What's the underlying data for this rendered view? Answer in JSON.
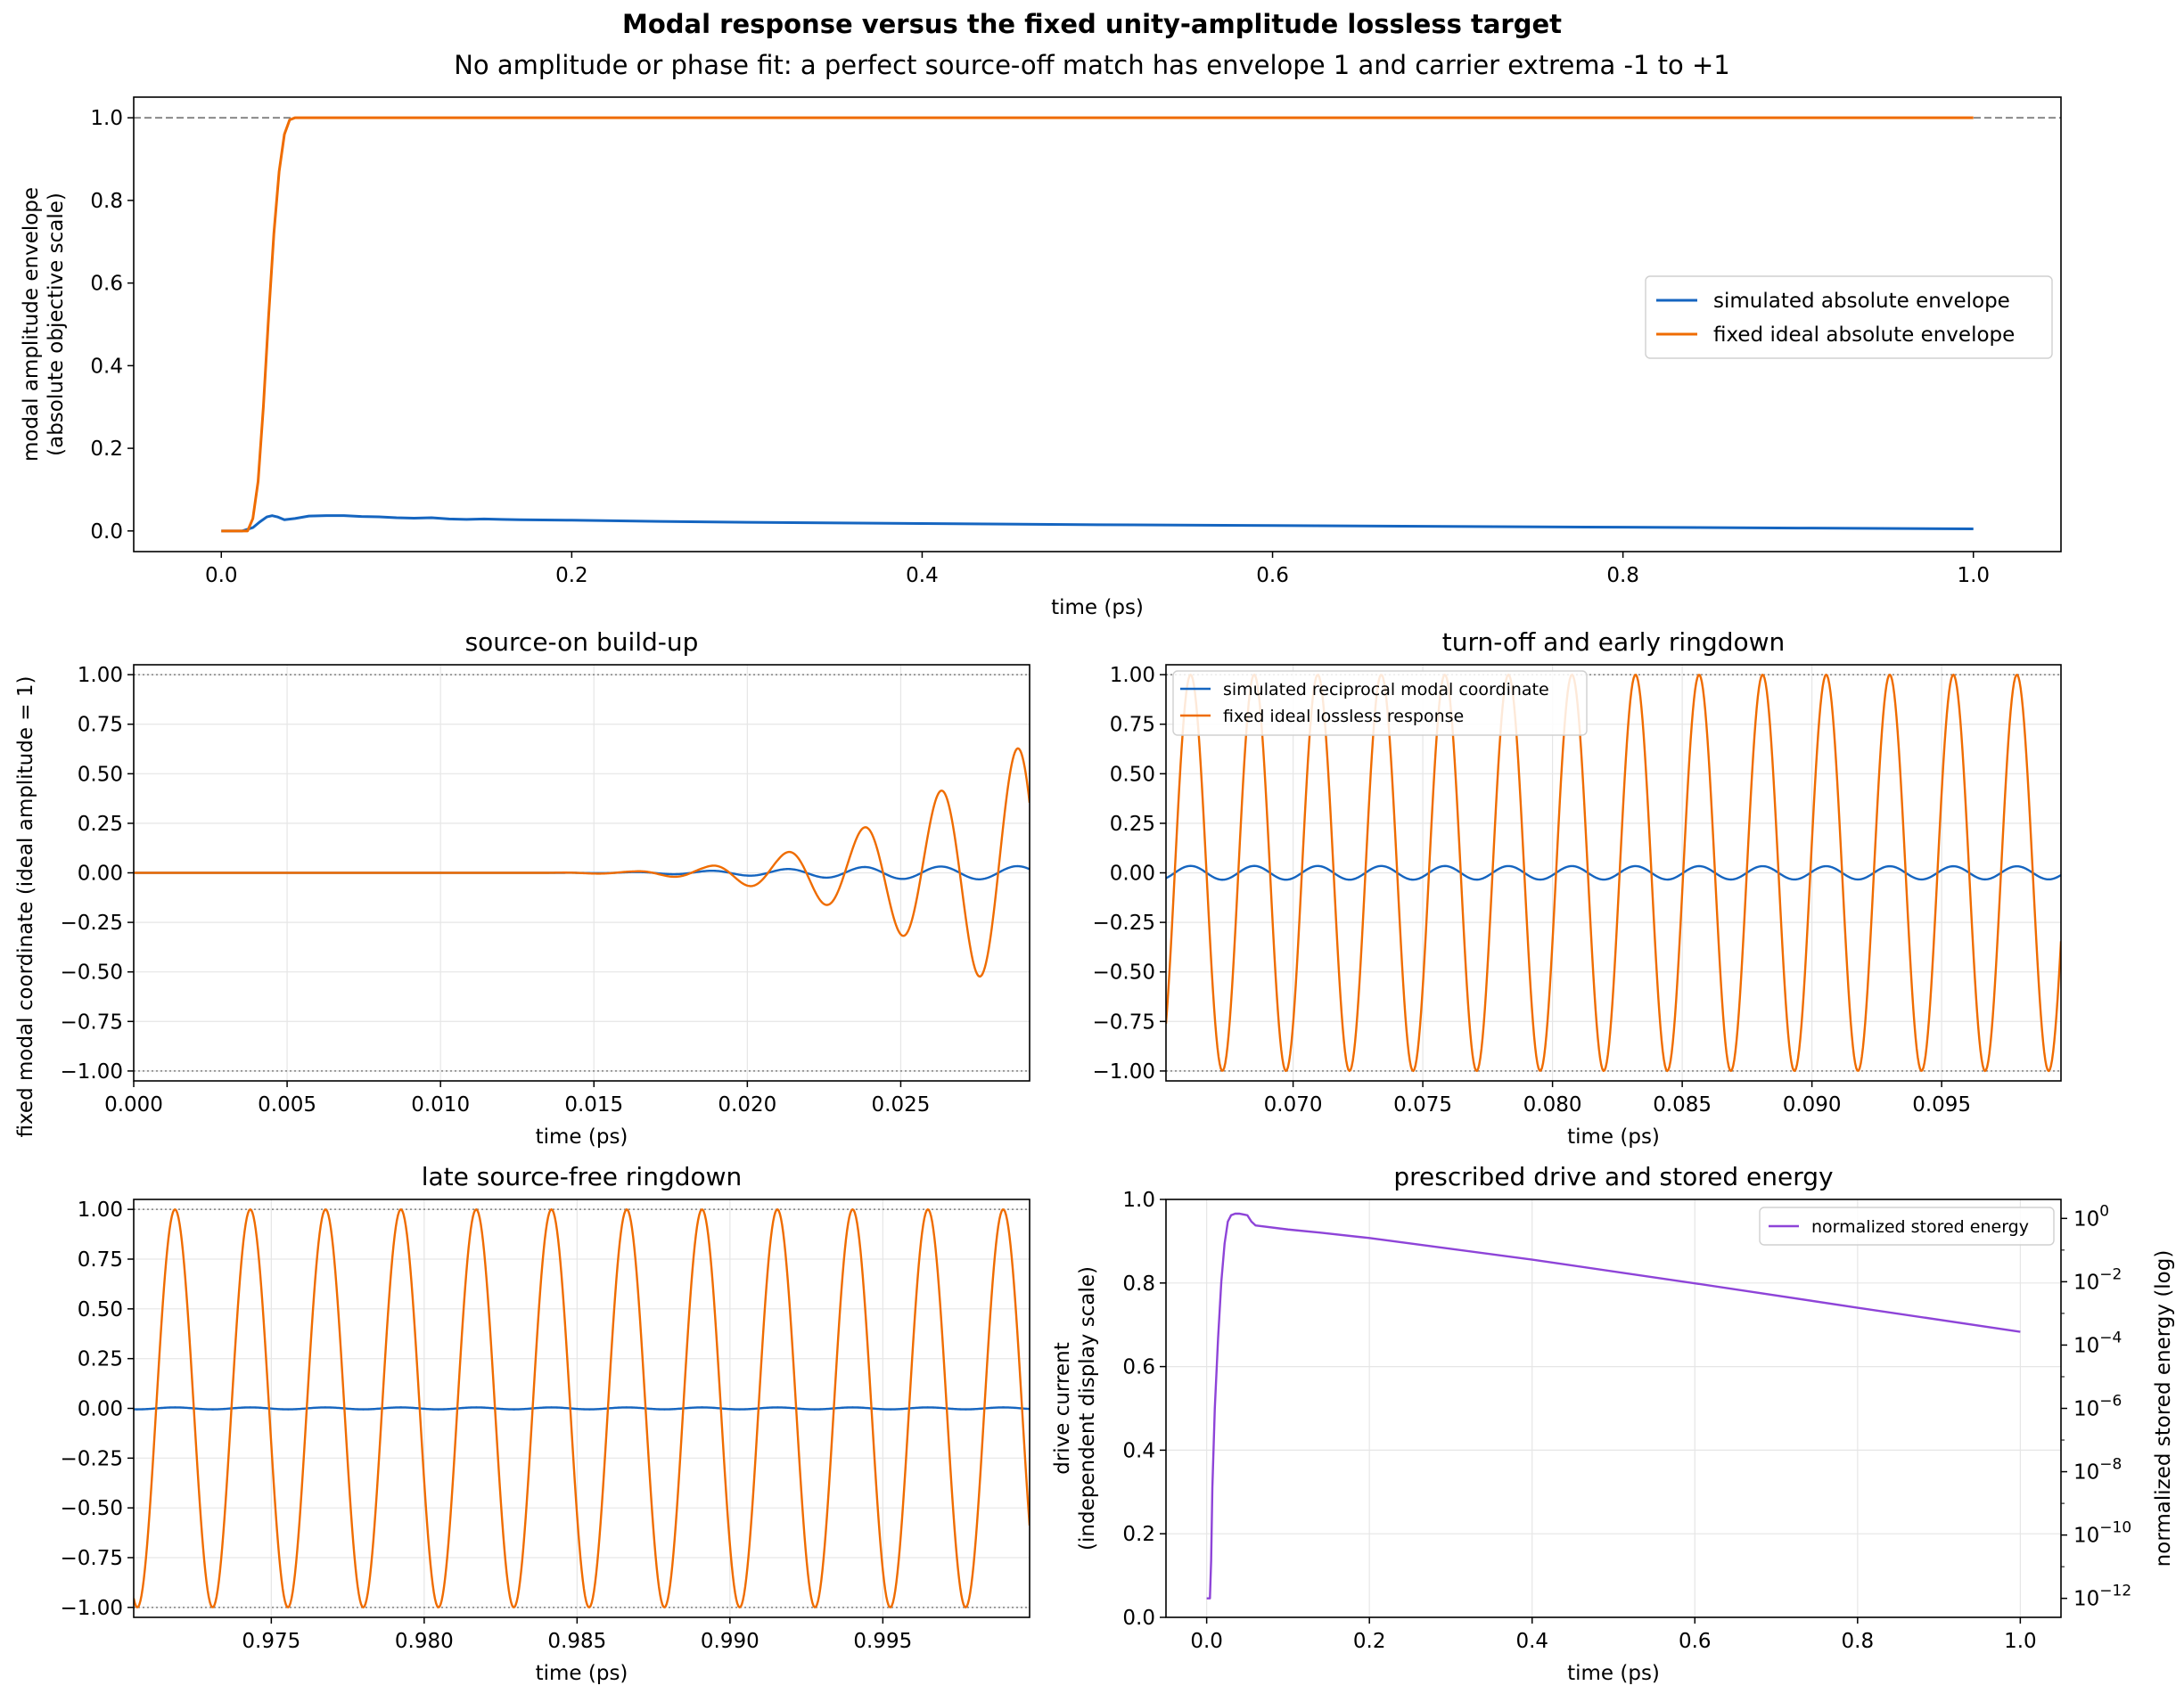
{
  "figure": {
    "title": "Modal response versus the fixed unity-amplitude lossless target",
    "subtitle": "No amplitude or phase fit: a perfect source-off match has envelope 1 and carrier extrema -1 to +1",
    "colors": {
      "simulated": "#1565c0",
      "ideal": "#ef6c00",
      "energy": "#8e44d8",
      "reference": "#808080"
    }
  },
  "chart_data": [
    {
      "id": "envelope",
      "type": "line",
      "title": "",
      "xlabel": "time (ps)",
      "ylabel": [
        "modal amplitude envelope",
        "(absolute objective scale)"
      ],
      "xlim": [
        -0.05,
        1.05
      ],
      "ylim": [
        -0.05,
        1.05
      ],
      "xticks": [
        0.0,
        0.2,
        0.4,
        0.6,
        0.8,
        1.0
      ],
      "xticklabels": [
        "0.0",
        "0.2",
        "0.4",
        "0.6",
        "0.8",
        "1.0"
      ],
      "yticks": [
        0.0,
        0.2,
        0.4,
        0.6,
        0.8,
        1.0
      ],
      "yticklabels": [
        "0.0",
        "0.2",
        "0.4",
        "0.6",
        "0.8",
        "1.0"
      ],
      "grid": false,
      "legend": "center-right",
      "reference_lines": [
        {
          "y": 1.0,
          "style": "dashed"
        }
      ],
      "series": [
        {
          "name": "simulated absolute envelope",
          "color": "#1565c0",
          "x": [
            0.0,
            0.012,
            0.018,
            0.022,
            0.026,
            0.029,
            0.032,
            0.036,
            0.042,
            0.05,
            0.06,
            0.07,
            0.08,
            0.09,
            0.1,
            0.11,
            0.12,
            0.13,
            0.14,
            0.15,
            0.16,
            0.17,
            0.2,
            0.25,
            0.3,
            0.4,
            0.5,
            0.6,
            0.7,
            0.8,
            0.9,
            1.0
          ],
          "y": [
            0.0,
            0.0,
            0.008,
            0.022,
            0.034,
            0.037,
            0.034,
            0.027,
            0.03,
            0.036,
            0.037,
            0.037,
            0.035,
            0.034,
            0.032,
            0.031,
            0.032,
            0.029,
            0.028,
            0.029,
            0.028,
            0.027,
            0.026,
            0.023,
            0.021,
            0.018,
            0.015,
            0.013,
            0.011,
            0.009,
            0.007,
            0.005
          ]
        },
        {
          "name": "fixed ideal absolute envelope",
          "color": "#ef6c00",
          "x": [
            0.0,
            0.015,
            0.018,
            0.021,
            0.024,
            0.027,
            0.03,
            0.033,
            0.036,
            0.039,
            0.042,
            0.05,
            0.2,
            0.4,
            0.6,
            0.8,
            1.0
          ],
          "y": [
            0.0,
            0.0,
            0.03,
            0.12,
            0.3,
            0.52,
            0.72,
            0.87,
            0.96,
            0.995,
            1.0,
            1.0,
            1.0,
            1.0,
            1.0,
            1.0,
            1.0
          ]
        }
      ]
    },
    {
      "id": "buildup",
      "type": "line",
      "title": "source-on build-up",
      "xlabel": "time (ps)",
      "ylabel": "fixed modal coordinate (ideal amplitude = 1)",
      "xlim": [
        0.0,
        0.0292
      ],
      "ylim": [
        -1.05,
        1.05
      ],
      "xticks": [
        0.0,
        0.005,
        0.01,
        0.015,
        0.02,
        0.025
      ],
      "xticklabels": [
        "0.000",
        "0.005",
        "0.010",
        "0.015",
        "0.020",
        "0.025"
      ],
      "yticks": [
        1.0,
        0.75,
        0.5,
        0.25,
        0.0,
        -0.25,
        -0.5,
        -0.75,
        -1.0
      ],
      "yticklabels": [
        "1.00",
        "0.75",
        "0.50",
        "0.25",
        "0.00",
        "−0.25",
        "−0.50",
        "−0.75",
        "−1.00"
      ],
      "grid": true,
      "reference_lines": [
        {
          "y": 1.0,
          "style": "dotted"
        },
        {
          "y": -1.0,
          "style": "dotted"
        }
      ],
      "carrier": {
        "period": 0.0025,
        "phase0": -0.0237,
        "t_start": 0.0,
        "t_end": 0.0292
      },
      "series": [
        {
          "name": "simulated reciprocal modal coordinate",
          "color": "#1565c0",
          "envelope_t": [
            0.0,
            0.014,
            0.016,
            0.018,
            0.02,
            0.022,
            0.024,
            0.0292
          ],
          "envelope_a": [
            0.0,
            0.0,
            0.003,
            0.008,
            0.014,
            0.022,
            0.03,
            0.034
          ]
        },
        {
          "name": "fixed ideal lossless response",
          "color": "#ef6c00",
          "envelope_t": [
            0.0,
            0.0135,
            0.0163,
            0.0186,
            0.021,
            0.0234,
            0.0258,
            0.0281,
            0.0292
          ],
          "envelope_a": [
            0.0,
            0.0,
            0.007,
            0.03,
            0.09,
            0.2,
            0.37,
            0.57,
            0.66
          ]
        }
      ]
    },
    {
      "id": "turnoff",
      "type": "line",
      "title": "turn-off and early ringdown",
      "xlabel": "time (ps)",
      "ylabel": "",
      "xlim": [
        0.0651,
        0.0996
      ],
      "ylim": [
        -1.05,
        1.05
      ],
      "xticks": [
        0.07,
        0.075,
        0.08,
        0.085,
        0.09,
        0.095
      ],
      "xticklabels": [
        "0.070",
        "0.075",
        "0.080",
        "0.085",
        "0.090",
        "0.095"
      ],
      "yticks": [
        1.0,
        0.75,
        0.5,
        0.25,
        0.0,
        -0.25,
        -0.5,
        -0.75,
        -1.0
      ],
      "yticklabels": [
        "1.00",
        "0.75",
        "0.50",
        "0.25",
        "0.00",
        "−0.25",
        "−0.50",
        "−0.75",
        "−1.00"
      ],
      "grid": true,
      "legend": "top-left",
      "reference_lines": [
        {
          "y": 1.0,
          "style": "dotted"
        },
        {
          "y": -1.0,
          "style": "dotted"
        }
      ],
      "carrier": {
        "period": 0.00245,
        "phase0": 0.07585,
        "t_start": 0.0651,
        "t_end": 0.0996
      },
      "series": [
        {
          "name": "simulated reciprocal modal coordinate",
          "color": "#1565c0",
          "envelope_t": [
            0.0651,
            0.0996
          ],
          "envelope_a": [
            0.035,
            0.033
          ]
        },
        {
          "name": "fixed ideal lossless response",
          "color": "#ef6c00",
          "envelope_t": [
            0.0651,
            0.0996
          ],
          "envelope_a": [
            1.0,
            1.0
          ]
        }
      ]
    },
    {
      "id": "late",
      "type": "line",
      "title": "late source-free ringdown",
      "xlabel": "time (ps)",
      "ylabel": "",
      "xlim": [
        0.9705,
        0.9998
      ],
      "ylim": [
        -1.05,
        1.05
      ],
      "xticks": [
        0.975,
        0.98,
        0.985,
        0.99,
        0.995
      ],
      "xticklabels": [
        "0.975",
        "0.980",
        "0.985",
        "0.990",
        "0.995"
      ],
      "yticks": [
        1.0,
        0.75,
        0.5,
        0.25,
        0.0,
        -0.25,
        -0.5,
        -0.75,
        -1.0
      ],
      "yticklabels": [
        "1.00",
        "0.75",
        "0.50",
        "0.25",
        "0.00",
        "−0.25",
        "−0.50",
        "−0.75",
        "−1.00"
      ],
      "grid": true,
      "reference_lines": [
        {
          "y": 1.0,
          "style": "dotted"
        },
        {
          "y": -1.0,
          "style": "dotted"
        }
      ],
      "carrier": {
        "period": 0.0024625,
        "phase0": 0.97185,
        "t_start": 0.9705,
        "t_end": 0.9998
      },
      "series": [
        {
          "name": "simulated reciprocal modal coordinate",
          "color": "#1565c0",
          "envelope_t": [
            0.9705,
            0.9998
          ],
          "envelope_a": [
            0.005,
            0.005
          ]
        },
        {
          "name": "fixed ideal lossless response",
          "color": "#ef6c00",
          "envelope_t": [
            0.9705,
            0.9998
          ],
          "envelope_a": [
            1.0,
            1.0
          ]
        }
      ]
    },
    {
      "id": "energy",
      "type": "line",
      "title": "prescribed drive and stored energy",
      "xlabel": "time (ps)",
      "ylabel": [
        "drive current",
        "(independent display scale)"
      ],
      "y2label": "normalized stored energy (log)",
      "xlim": [
        -0.05,
        1.05
      ],
      "ylim": [
        0.0,
        1.0
      ],
      "y2_log10_lim": [
        -12.6,
        0.6
      ],
      "xticks": [
        0.0,
        0.2,
        0.4,
        0.6,
        0.8,
        1.0
      ],
      "xticklabels": [
        "0.0",
        "0.2",
        "0.4",
        "0.6",
        "0.8",
        "1.0"
      ],
      "yticks": [
        0.0,
        0.2,
        0.4,
        0.6,
        0.8,
        1.0
      ],
      "yticklabels": [
        "0.0",
        "0.2",
        "0.4",
        "0.6",
        "0.8",
        "1.0"
      ],
      "y2ticks_exp": [
        0,
        -2,
        -4,
        -6,
        -8,
        -10,
        -12
      ],
      "grid": true,
      "legend": "top-right",
      "series": [
        {
          "name": "normalized stored energy",
          "color": "#8e44d8",
          "axis": "y2",
          "x": [
            0.0,
            0.004,
            0.0055,
            0.007,
            0.01,
            0.014,
            0.018,
            0.022,
            0.026,
            0.03,
            0.035,
            0.04,
            0.05,
            0.055,
            0.06,
            0.1,
            0.14,
            0.2,
            0.4,
            0.6,
            0.8,
            1.0
          ],
          "log10_y": [
            -12.0,
            -12.0,
            -10.8,
            -8.5,
            -6.0,
            -3.8,
            -2.0,
            -0.8,
            -0.1,
            0.1,
            0.15,
            0.15,
            0.1,
            -0.1,
            -0.22,
            -0.35,
            -0.45,
            -0.62,
            -1.3,
            -2.05,
            -2.82,
            -3.58
          ]
        }
      ]
    }
  ],
  "legends": {
    "envelope": [
      "simulated absolute envelope",
      "fixed ideal absolute envelope"
    ],
    "turnoff": [
      "simulated reciprocal modal coordinate",
      "fixed ideal lossless response"
    ],
    "energy": [
      "normalized stored energy"
    ]
  }
}
